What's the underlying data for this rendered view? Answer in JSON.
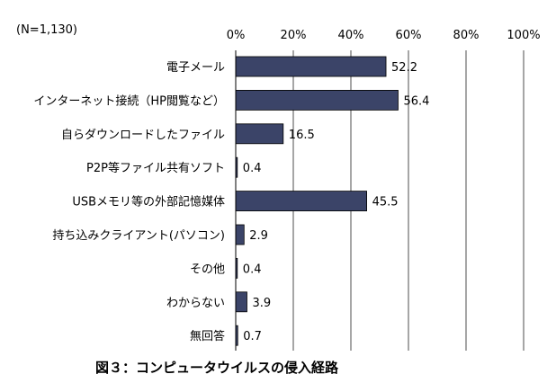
{
  "chart_data": {
    "type": "bar",
    "orientation": "horizontal",
    "sample_size_label": "(N=1,130)",
    "caption": "図３：コンピュータウイルスの侵入経路",
    "categories": [
      "電子メール",
      "インターネット接続（HP閲覧など）",
      "自らダウンロードしたファイル",
      "P2P等ファイル共有ソフト",
      "USBメモリ等の外部記憶媒体",
      "持ち込みクライアント(パソコン)",
      "その他",
      "わからない",
      "無回答"
    ],
    "values": [
      52.2,
      56.4,
      16.5,
      0.4,
      45.5,
      2.9,
      0.4,
      3.9,
      0.7
    ],
    "value_labels": [
      "52.2",
      "56.4",
      "16.5",
      "0.4",
      "45.5",
      "2.9",
      "0.4",
      "3.9",
      "0.7"
    ],
    "xlim": [
      0,
      100
    ],
    "ticks": [
      0,
      20,
      40,
      60,
      80,
      100
    ],
    "tick_labels": [
      "0%",
      "20%",
      "40%",
      "60%",
      "80%",
      "100%"
    ],
    "grid": true,
    "bar_color": "#3b4468",
    "bar_edge_color": "#000000",
    "grid_color": "#000000"
  }
}
